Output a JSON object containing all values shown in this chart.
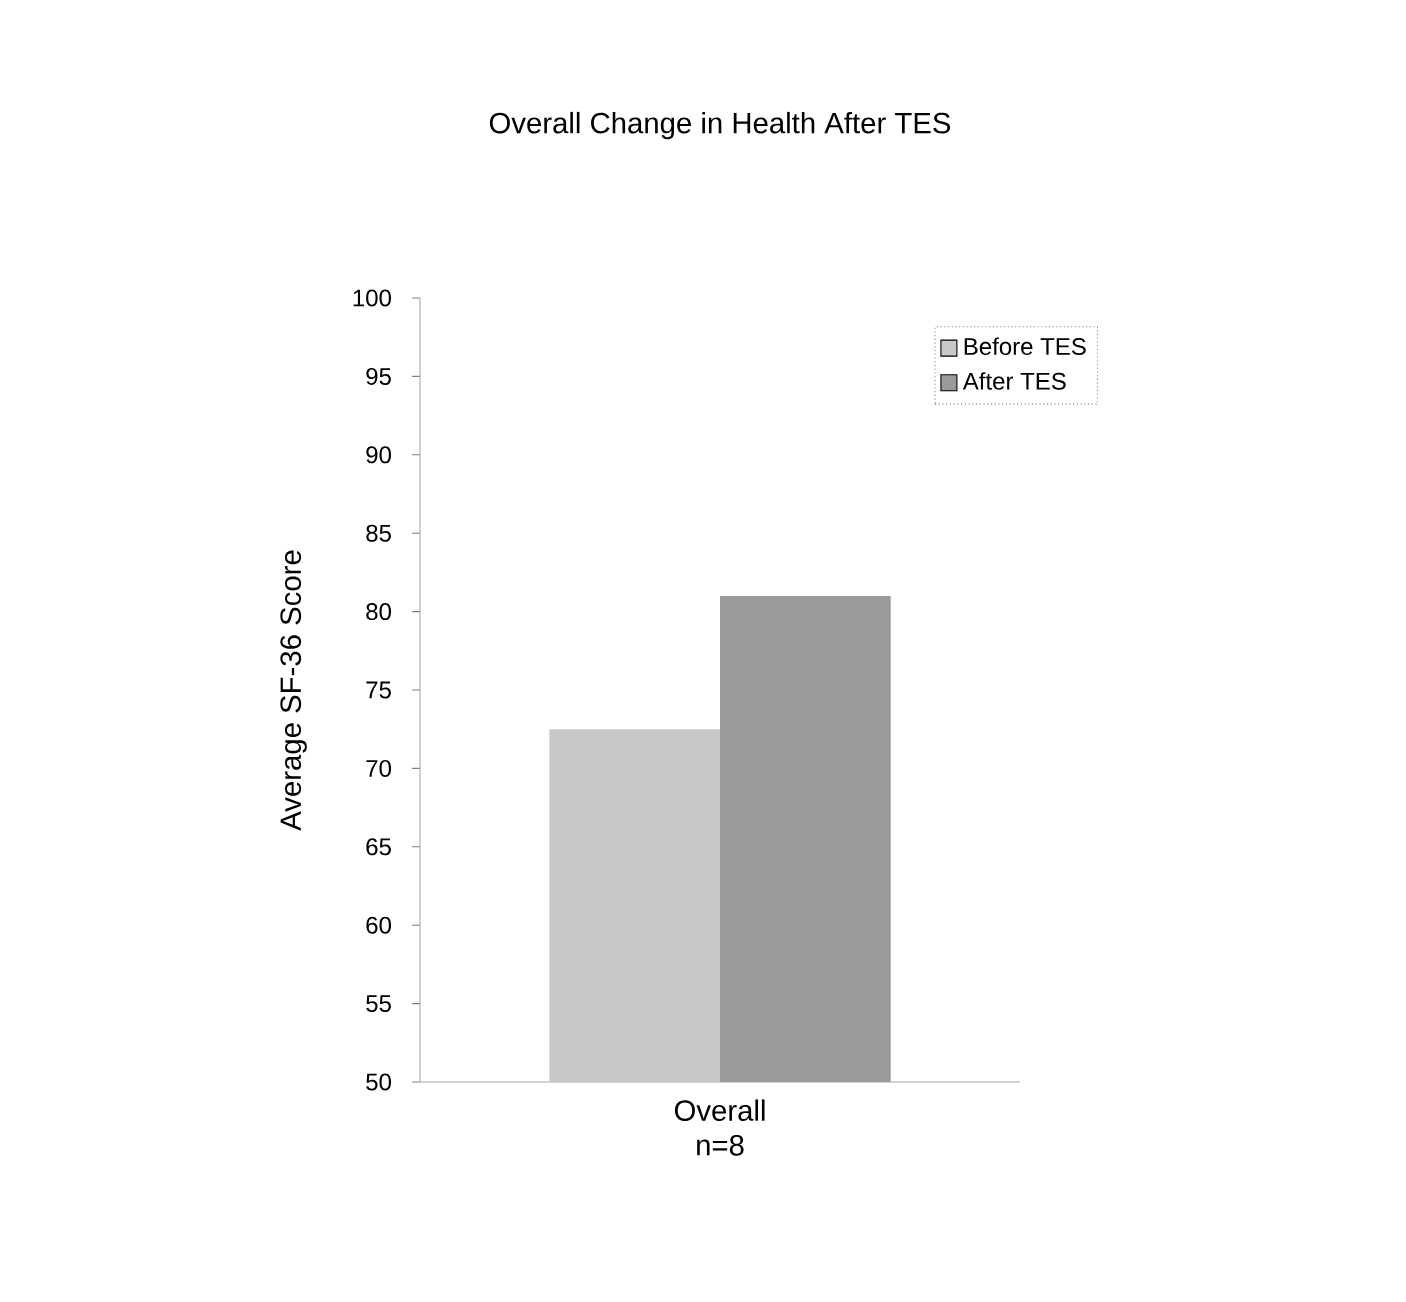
{
  "chart_data": {
    "type": "bar",
    "title": "Overall Change in Health After TES",
    "ylabel": "Average SF-36 Score",
    "categories": [
      "Overall n=8"
    ],
    "series": [
      {
        "name": "Before TES",
        "color": "#c8c8c8",
        "values": [
          72.5
        ]
      },
      {
        "name": "After TES",
        "color": "#9a9a9a",
        "values": [
          81
        ]
      }
    ],
    "ylim": [
      50,
      100
    ],
    "yticks": [
      50,
      55,
      60,
      65,
      70,
      75,
      80,
      85,
      90,
      95,
      100
    ],
    "legend": "top right"
  }
}
